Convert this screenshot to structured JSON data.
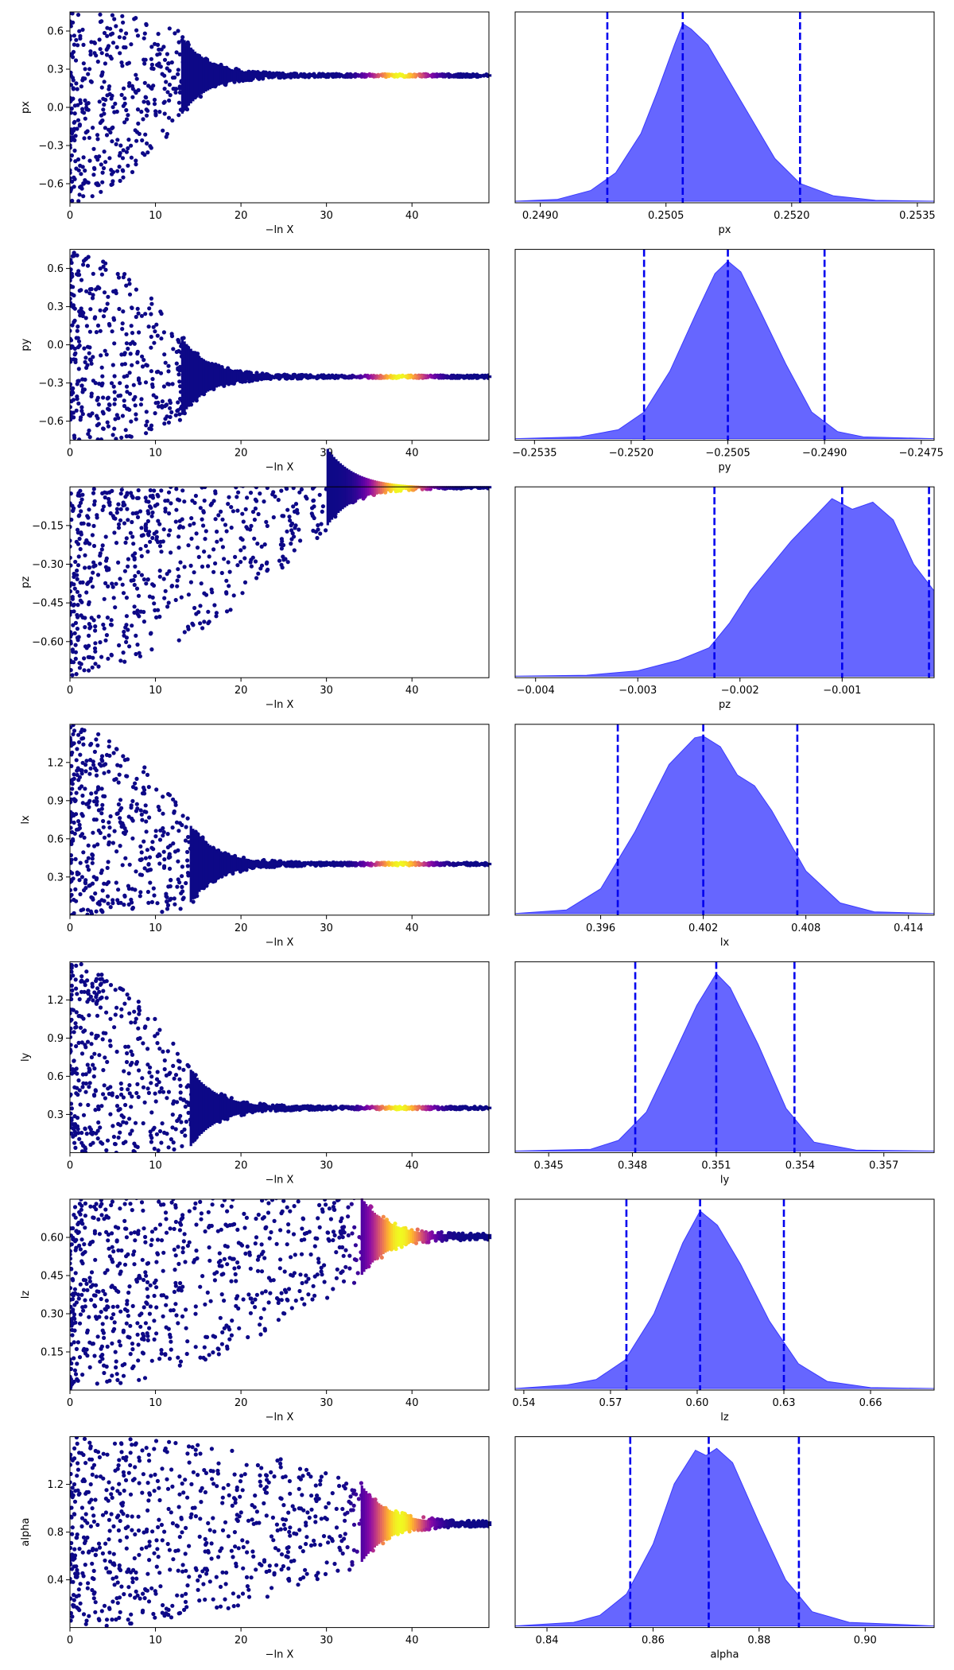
{
  "chart_data": [
    {
      "panel": "trace",
      "type": "scatter",
      "parameter": "px",
      "xlabel": "−ln X",
      "ylabel": "px",
      "xlim": [
        0,
        49
      ],
      "ylim": [
        -0.75,
        0.75
      ],
      "xticks": [
        "0",
        "10",
        "20",
        "30",
        "40"
      ],
      "yticks": [
        "0.6",
        "0.3",
        "0.0",
        "−0.3",
        "−0.6"
      ],
      "converged_value": 0.2507,
      "initial_scatter": [
        -0.75,
        0.75
      ],
      "collapse_at": 13,
      "tail_width": 0.02,
      "colormap": [
        "#0d0887",
        "#5302a3",
        "#8b0aa5",
        "#b83289",
        "#db5c68",
        "#f48849",
        "#febd2a",
        "#f0f921"
      ]
    },
    {
      "panel": "posterior",
      "type": "area",
      "parameter": "px",
      "xlabel": "px",
      "xlim": [
        0.2487,
        0.2537
      ],
      "xticks": [
        "0.2490",
        "0.2505",
        "0.2520",
        "0.2535"
      ],
      "curve_x": [
        0.2487,
        0.2492,
        0.2496,
        0.2499,
        0.2502,
        0.2504,
        0.2506,
        0.2507,
        0.2508,
        0.251,
        0.2512,
        0.2515,
        0.2518,
        0.2521,
        0.2525,
        0.253,
        0.2537
      ],
      "density": [
        0,
        0.01,
        0.06,
        0.16,
        0.38,
        0.62,
        0.88,
        1.0,
        0.97,
        0.88,
        0.72,
        0.48,
        0.24,
        0.1,
        0.03,
        0.005,
        0
      ],
      "quantiles": [
        0.2498,
        0.2507,
        0.2521
      ],
      "fill": "#6666ff",
      "quantile_color": "#0000ee"
    },
    {
      "panel": "trace",
      "type": "scatter",
      "parameter": "py",
      "xlabel": "−ln X",
      "ylabel": "py",
      "xlim": [
        0,
        49
      ],
      "ylim": [
        -0.75,
        0.75
      ],
      "xticks": [
        "0",
        "10",
        "20",
        "30",
        "40"
      ],
      "yticks": [
        "0.6",
        "0.3",
        "0.0",
        "−0.3",
        "−0.6"
      ],
      "converged_value": -0.2505,
      "initial_scatter": [
        -0.75,
        0.75
      ],
      "collapse_at": 13,
      "tail_width": 0.02,
      "colormap": [
        "#0d0887",
        "#5302a3",
        "#8b0aa5",
        "#b83289",
        "#db5c68",
        "#f48849",
        "#febd2a",
        "#f0f921"
      ]
    },
    {
      "panel": "posterior",
      "type": "area",
      "parameter": "py",
      "xlabel": "py",
      "xlim": [
        -0.2538,
        -0.2473
      ],
      "xticks": [
        "−0.2535",
        "−0.2520",
        "−0.2505",
        "−0.2490",
        "−0.2475"
      ],
      "curve_x": [
        -0.2538,
        -0.2528,
        -0.2522,
        -0.2518,
        -0.2514,
        -0.251,
        -0.2507,
        -0.2505,
        -0.2503,
        -0.25,
        -0.2496,
        -0.2492,
        -0.2488,
        -0.2484,
        -0.2473
      ],
      "density": [
        0,
        0.01,
        0.05,
        0.15,
        0.38,
        0.7,
        0.93,
        1.0,
        0.94,
        0.72,
        0.42,
        0.15,
        0.04,
        0.01,
        0
      ],
      "quantiles": [
        -0.2518,
        -0.2505,
        -0.249
      ],
      "fill": "#6666ff",
      "quantile_color": "#0000ee"
    },
    {
      "panel": "trace",
      "type": "scatter",
      "parameter": "pz",
      "xlabel": "−ln X",
      "ylabel": "pz",
      "xlim": [
        0,
        49
      ],
      "ylim": [
        -0.74,
        0.0
      ],
      "xticks": [
        "0",
        "10",
        "20",
        "30",
        "40"
      ],
      "yticks": [
        "−0.15",
        "−0.30",
        "−0.45",
        "−0.60"
      ],
      "converged_value": -0.001,
      "initial_scatter": [
        -0.74,
        0.0
      ],
      "collapse_at": 30,
      "tail_width": 0.008,
      "colormap": [
        "#0d0887",
        "#5302a3",
        "#8b0aa5",
        "#b83289",
        "#db5c68",
        "#f48849",
        "#febd2a",
        "#f0f921"
      ]
    },
    {
      "panel": "posterior",
      "type": "area",
      "parameter": "pz",
      "xlabel": "pz",
      "xlim": [
        -0.0042,
        -0.0001
      ],
      "xticks": [
        "−0.004",
        "−0.003",
        "−0.002",
        "−0.001"
      ],
      "curve_x": [
        -0.0042,
        -0.0035,
        -0.003,
        -0.0026,
        -0.0023,
        -0.0021,
        -0.0019,
        -0.0017,
        -0.0015,
        -0.0013,
        -0.0011,
        -0.001,
        -0.0009,
        -0.0007,
        -0.0005,
        -0.0003,
        -0.0001
      ],
      "density": [
        0,
        0.005,
        0.03,
        0.09,
        0.16,
        0.3,
        0.48,
        0.62,
        0.76,
        0.88,
        1.0,
        0.97,
        0.94,
        0.98,
        0.88,
        0.63,
        0.48
      ],
      "quantiles": [
        -0.00225,
        -0.001,
        -0.00015
      ],
      "fill": "#6666ff",
      "quantile_color": "#0000ee"
    },
    {
      "panel": "trace",
      "type": "scatter",
      "parameter": "lx",
      "xlabel": "−ln X",
      "ylabel": "lx",
      "xlim": [
        0,
        49
      ],
      "ylim": [
        0.0,
        1.5
      ],
      "xticks": [
        "0",
        "10",
        "20",
        "30",
        "40"
      ],
      "yticks": [
        "1.2",
        "0.9",
        "0.6",
        "0.3"
      ],
      "converged_value": 0.402,
      "initial_scatter": [
        0.0,
        1.5
      ],
      "collapse_at": 14,
      "tail_width": 0.02,
      "colormap": [
        "#0d0887",
        "#5302a3",
        "#8b0aa5",
        "#b83289",
        "#db5c68",
        "#f48849",
        "#febd2a",
        "#f0f921"
      ]
    },
    {
      "panel": "posterior",
      "type": "area",
      "parameter": "lx",
      "xlabel": "lx",
      "xlim": [
        0.391,
        0.4155
      ],
      "xticks": [
        "0.396",
        "0.402",
        "0.408",
        "0.414"
      ],
      "curve_x": [
        0.391,
        0.394,
        0.396,
        0.398,
        0.4,
        0.4015,
        0.402,
        0.403,
        0.404,
        0.405,
        0.406,
        0.408,
        0.41,
        0.412,
        0.4155
      ],
      "density": [
        0,
        0.02,
        0.14,
        0.46,
        0.84,
        0.99,
        1.0,
        0.94,
        0.78,
        0.72,
        0.58,
        0.24,
        0.06,
        0.01,
        0
      ],
      "quantiles": [
        0.397,
        0.402,
        0.4075
      ],
      "fill": "#6666ff",
      "quantile_color": "#0000ee"
    },
    {
      "panel": "trace",
      "type": "scatter",
      "parameter": "ly",
      "xlabel": "−ln X",
      "ylabel": "ly",
      "xlim": [
        0,
        49
      ],
      "ylim": [
        0.0,
        1.5
      ],
      "xticks": [
        "0",
        "10",
        "20",
        "30",
        "40"
      ],
      "yticks": [
        "1.2",
        "0.9",
        "0.6",
        "0.3"
      ],
      "converged_value": 0.351,
      "initial_scatter": [
        0.0,
        1.5
      ],
      "collapse_at": 14,
      "tail_width": 0.02,
      "colormap": [
        "#0d0887",
        "#5302a3",
        "#8b0aa5",
        "#b83289",
        "#db5c68",
        "#f48849",
        "#febd2a",
        "#f0f921"
      ]
    },
    {
      "panel": "posterior",
      "type": "area",
      "parameter": "ly",
      "xlabel": "ly",
      "xlim": [
        0.3438,
        0.3588
      ],
      "xticks": [
        "0.345",
        "0.348",
        "0.351",
        "0.354",
        "0.357"
      ],
      "curve_x": [
        0.3438,
        0.3465,
        0.3475,
        0.3485,
        0.3495,
        0.3503,
        0.351,
        0.3515,
        0.3525,
        0.3535,
        0.3545,
        0.356,
        0.3588
      ],
      "density": [
        0,
        0.01,
        0.06,
        0.22,
        0.55,
        0.82,
        1.0,
        0.92,
        0.6,
        0.24,
        0.05,
        0.005,
        0
      ],
      "quantiles": [
        0.3481,
        0.351,
        0.3538
      ],
      "fill": "#6666ff",
      "quantile_color": "#0000ee"
    },
    {
      "panel": "trace",
      "type": "scatter",
      "parameter": "lz",
      "xlabel": "−ln X",
      "ylabel": "lz",
      "xlim": [
        0,
        49
      ],
      "ylim": [
        0.0,
        0.75
      ],
      "xticks": [
        "0",
        "10",
        "20",
        "30",
        "40"
      ],
      "yticks": [
        "0.60",
        "0.45",
        "0.30",
        "0.15"
      ],
      "converged_value": 0.603,
      "initial_scatter": [
        0.0,
        0.75
      ],
      "collapse_at": 34,
      "tail_width": 0.02,
      "colormap": [
        "#0d0887",
        "#5302a3",
        "#8b0aa5",
        "#b83289",
        "#db5c68",
        "#f48849",
        "#febd2a",
        "#f0f921"
      ]
    },
    {
      "panel": "posterior",
      "type": "area",
      "parameter": "lz",
      "xlabel": "lz",
      "xlim": [
        0.537,
        0.682
      ],
      "xticks": [
        "0.54",
        "0.57",
        "0.60",
        "0.63",
        "0.66"
      ],
      "curve_x": [
        0.537,
        0.555,
        0.565,
        0.575,
        0.585,
        0.595,
        0.601,
        0.607,
        0.615,
        0.625,
        0.635,
        0.645,
        0.66,
        0.682
      ],
      "density": [
        0,
        0.02,
        0.05,
        0.16,
        0.42,
        0.82,
        1.0,
        0.92,
        0.7,
        0.38,
        0.14,
        0.04,
        0.005,
        0
      ],
      "quantiles": [
        0.5755,
        0.601,
        0.63
      ],
      "fill": "#6666ff",
      "quantile_color": "#0000ee"
    },
    {
      "panel": "trace",
      "type": "scatter",
      "parameter": "alpha",
      "xlabel": "−ln X",
      "ylabel": "alpha",
      "xlim": [
        0,
        49
      ],
      "ylim": [
        0.0,
        1.6
      ],
      "xticks": [
        "0",
        "10",
        "20",
        "30",
        "40"
      ],
      "yticks": [
        "1.2",
        "0.8",
        "0.4"
      ],
      "converged_value": 0.871,
      "initial_scatter": [
        0.0,
        1.6
      ],
      "collapse_at": 34,
      "tail_width": 0.04,
      "colormap": [
        "#0d0887",
        "#5302a3",
        "#8b0aa5",
        "#b83289",
        "#db5c68",
        "#f48849",
        "#febd2a",
        "#f0f921"
      ]
    },
    {
      "panel": "posterior",
      "type": "area",
      "parameter": "alpha",
      "xlabel": "alpha",
      "xlim": [
        0.834,
        0.913
      ],
      "xticks": [
        "0.84",
        "0.86",
        "0.88",
        "0.90"
      ],
      "curve_x": [
        0.834,
        0.845,
        0.85,
        0.855,
        0.86,
        0.864,
        0.868,
        0.87,
        0.872,
        0.875,
        0.88,
        0.885,
        0.89,
        0.897,
        0.913
      ],
      "density": [
        0,
        0.02,
        0.06,
        0.18,
        0.46,
        0.8,
        0.99,
        0.96,
        1.0,
        0.92,
        0.58,
        0.26,
        0.08,
        0.02,
        0
      ],
      "quantiles": [
        0.8557,
        0.8705,
        0.8875
      ],
      "fill": "#6666ff",
      "quantile_color": "#0000ee"
    }
  ]
}
